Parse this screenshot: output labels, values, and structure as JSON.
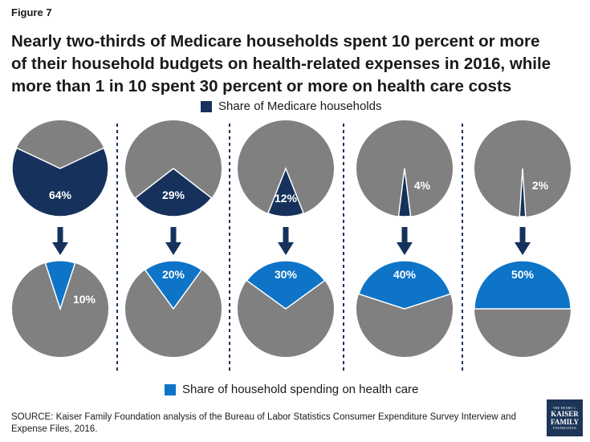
{
  "figure_label": "Figure 7",
  "title_lines": [
    "Nearly two-thirds of Medicare households spent 10 percent or more",
    "of their household budgets on health-related expenses in 2016, while",
    "more than 1 in 10 spent 30 percent or more on health care costs"
  ],
  "legend_top": {
    "label": "Share of Medicare households",
    "color": "#16325c"
  },
  "legend_bottom": {
    "label": "Share of household spending on health care",
    "color": "#0e74c8"
  },
  "pie_color": "#808080",
  "arrow_color": "#16325c",
  "chart_data": {
    "type": "pie",
    "columns": [
      {
        "households_share": 64,
        "households_label": "64%",
        "spending_share": 10,
        "spending_label": "10%"
      },
      {
        "households_share": 29,
        "households_label": "29%",
        "spending_share": 20,
        "spending_label": "20%"
      },
      {
        "households_share": 12,
        "households_label": "12%",
        "spending_share": 30,
        "spending_label": "30%"
      },
      {
        "households_share": 4,
        "households_label": "4%",
        "spending_share": 40,
        "spending_label": "40%"
      },
      {
        "households_share": 2,
        "households_label": "2%",
        "spending_share": 50,
        "spending_label": "50%"
      }
    ]
  },
  "source": "SOURCE: Kaiser Family Foundation analysis of the Bureau of Labor Statistics Consumer Expenditure Survey Interview and Expense Files, 2016.",
  "logo": {
    "line1": "THE HENRY J.",
    "line2": "KAISER",
    "line3": "FAMILY",
    "line4": "FOUNDATION"
  }
}
